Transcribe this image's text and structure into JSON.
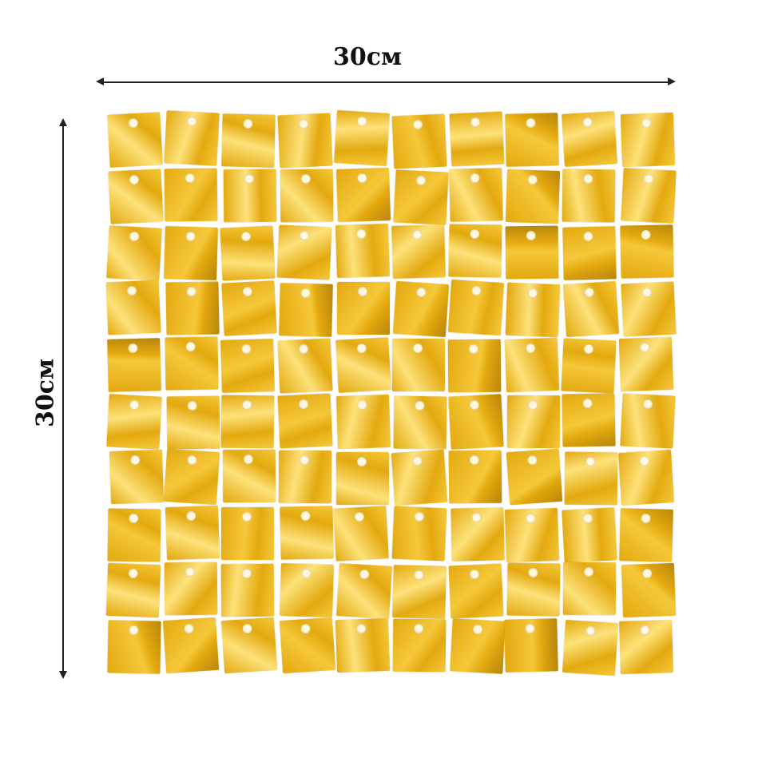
{
  "dimensions": {
    "width_label": "30см",
    "height_label": "30см"
  },
  "panel": {
    "rows": 10,
    "columns": 10,
    "colors": {
      "gold_light": "#f5c83a",
      "gold_mid": "#e3a90f",
      "gold_dark": "#b8860b",
      "highlight": "#fde27a"
    }
  }
}
